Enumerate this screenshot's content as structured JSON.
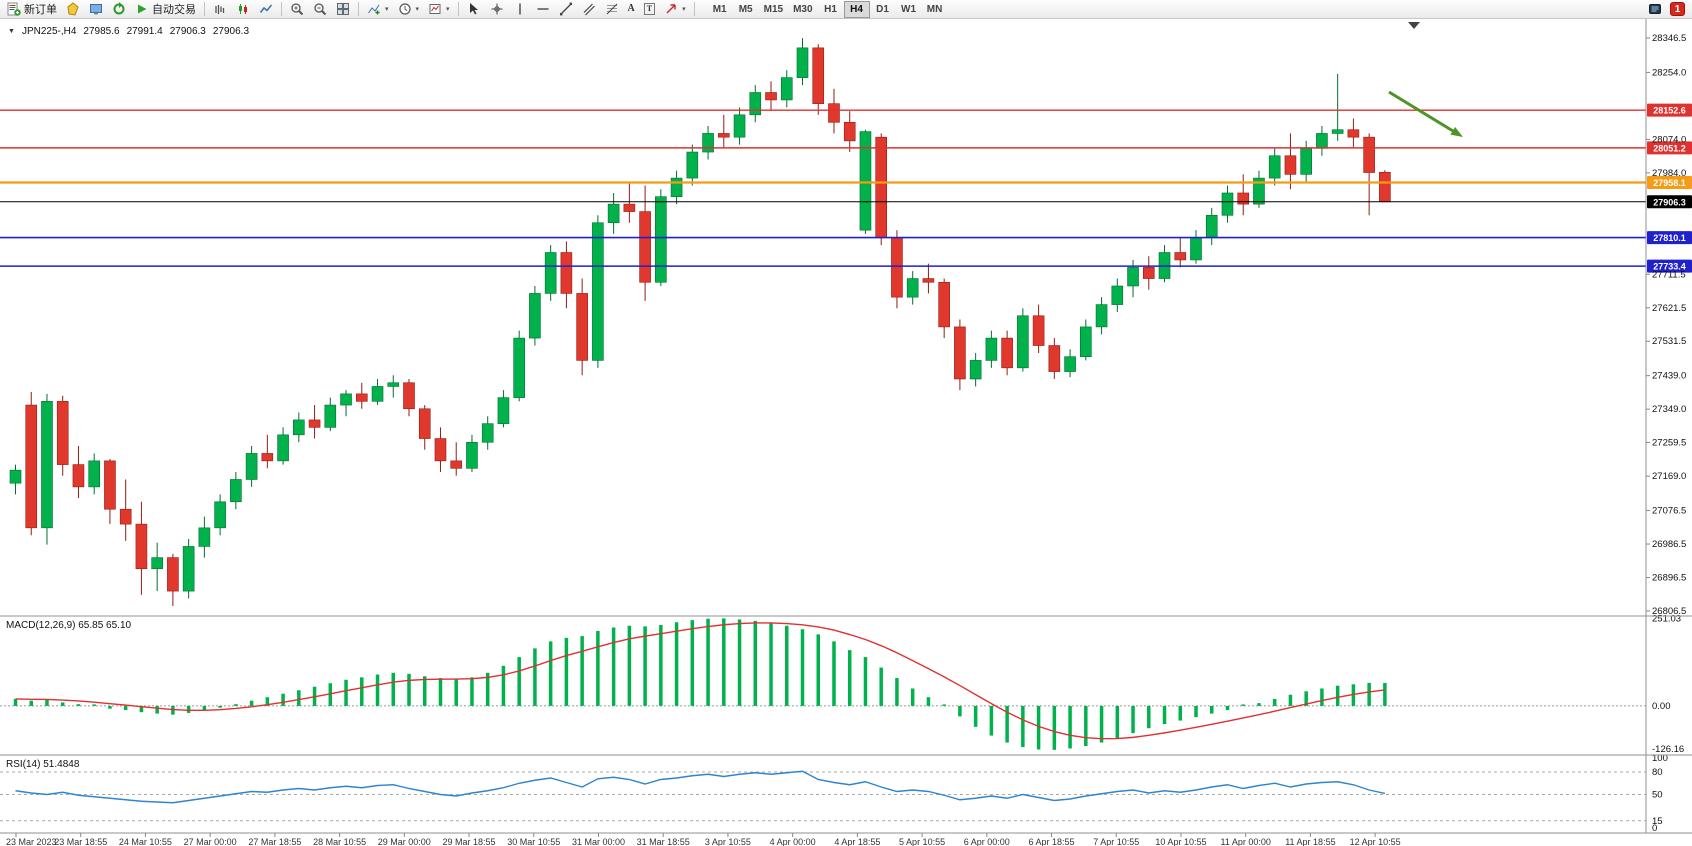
{
  "toolbar": {
    "new_order_label": "新订单",
    "autotrading_label": "自动交易",
    "timeframes": [
      "M1",
      "M5",
      "M15",
      "M30",
      "H1",
      "H4",
      "D1",
      "W1",
      "MN"
    ],
    "active_timeframe": "H4",
    "notification_count": "1"
  },
  "icons": {
    "chevron_down": "▾",
    "one_click": "▼",
    "text_tool": "A",
    "label_tool": "T"
  },
  "chart": {
    "symbol_period_label": "JPN225-,H4",
    "ohlc": {
      "open": "27985.6",
      "high": "27991.4",
      "low": "27906.3",
      "close": "27906.3"
    },
    "candle_up_color": "#00b14c",
    "candle_up_border": "#00702f",
    "candle_down_color": "#e0382c",
    "candle_down_border": "#911d14",
    "axis_labels": [
      "28346.5",
      "28254.0",
      "28074.0",
      "27984.0",
      "27711.5",
      "27621.5",
      "27531.5",
      "27439.0",
      "27349.0",
      "27259.5",
      "27169.0",
      "27076.5",
      "26986.5",
      "26896.5",
      "26806.5"
    ],
    "levels": [
      {
        "price": 28152.6,
        "label": "28152.6",
        "color": "#e03131",
        "width": 1.4
      },
      {
        "price": 28051.2,
        "label": "28051.2",
        "color": "#e03131",
        "width": 1.4
      },
      {
        "price": 27958.1,
        "label": "27958.1",
        "color": "#f59b14",
        "width": 2.2
      },
      {
        "price": 27810.1,
        "label": "27810.1",
        "color": "#2020cc",
        "width": 1.6
      },
      {
        "price": 27733.4,
        "label": "27733.4",
        "color": "#2020cc",
        "width": 1.6
      }
    ],
    "current_price": {
      "price": 27906.3,
      "label": "27906.3",
      "color": "#000000"
    },
    "annotation_arrow_color": "#4e9427"
  },
  "macd": {
    "label": "MACD(12,26,9) 65.85 65.10",
    "axis": [
      "251.03",
      "0.00",
      "-126.16"
    ],
    "histogram_color": "#00b14c",
    "signal_color": "#e03131"
  },
  "rsi": {
    "label": "RSI(14) 51.4848",
    "axis": [
      "100",
      "80",
      "50",
      "15",
      "0"
    ],
    "line_color": "#2f84d0"
  },
  "chart_data": {
    "type": "candlestick",
    "symbol": "JPN225-",
    "timeframe": "H4",
    "ylim": [
      26806.5,
      28346.5
    ],
    "time_labels": [
      "23 Mar 2023",
      "23 Mar 18:55",
      "24 Mar 10:55",
      "27 Mar 00:00",
      "27 Mar 18:55",
      "28 Mar 10:55",
      "29 Mar 00:00",
      "29 Mar 18:55",
      "30 Mar 10:55",
      "31 Mar 00:00",
      "31 Mar 18:55",
      "3 Apr 10:55",
      "4 Apr 00:00",
      "4 Apr 18:55",
      "5 Apr 10:55",
      "6 Apr 00:00",
      "6 Apr 18:55",
      "7 Apr 10:55",
      "10 Apr 10:55",
      "11 Apr 00:00",
      "11 Apr 18:55",
      "12 Apr 10:55"
    ],
    "candles": [
      [
        27150,
        27200,
        27120,
        27185
      ],
      [
        27360,
        27395,
        27010,
        27030
      ],
      [
        27030,
        27390,
        26985,
        27370
      ],
      [
        27370,
        27385,
        27170,
        27200
      ],
      [
        27200,
        27250,
        27110,
        27140
      ],
      [
        27140,
        27230,
        27120,
        27210
      ],
      [
        27210,
        27215,
        27040,
        27080
      ],
      [
        27080,
        27160,
        26995,
        27040
      ],
      [
        27040,
        27100,
        26850,
        26920
      ],
      [
        26920,
        26990,
        26860,
        26950
      ],
      [
        26950,
        26960,
        26820,
        26860
      ],
      [
        26860,
        27000,
        26840,
        26980
      ],
      [
        26980,
        27060,
        26950,
        27030
      ],
      [
        27030,
        27120,
        27010,
        27100
      ],
      [
        27100,
        27180,
        27080,
        27160
      ],
      [
        27160,
        27250,
        27140,
        27230
      ],
      [
        27230,
        27280,
        27190,
        27210
      ],
      [
        27210,
        27300,
        27200,
        27280
      ],
      [
        27280,
        27340,
        27260,
        27320
      ],
      [
        27320,
        27360,
        27270,
        27300
      ],
      [
        27300,
        27380,
        27290,
        27360
      ],
      [
        27360,
        27400,
        27330,
        27390
      ],
      [
        27390,
        27420,
        27350,
        27370
      ],
      [
        27370,
        27430,
        27360,
        27410
      ],
      [
        27410,
        27440,
        27380,
        27420
      ],
      [
        27420,
        27430,
        27330,
        27350
      ],
      [
        27350,
        27360,
        27240,
        27270
      ],
      [
        27270,
        27300,
        27180,
        27210
      ],
      [
        27210,
        27260,
        27170,
        27190
      ],
      [
        27190,
        27280,
        27180,
        27260
      ],
      [
        27260,
        27330,
        27240,
        27310
      ],
      [
        27310,
        27400,
        27300,
        27380
      ],
      [
        27380,
        27560,
        27370,
        27540
      ],
      [
        27540,
        27680,
        27520,
        27660
      ],
      [
        27660,
        27790,
        27640,
        27770
      ],
      [
        27770,
        27800,
        27620,
        27660
      ],
      [
        27660,
        27700,
        27440,
        27480
      ],
      [
        27480,
        27870,
        27460,
        27850
      ],
      [
        27850,
        27930,
        27820,
        27900
      ],
      [
        27900,
        27960,
        27850,
        27880
      ],
      [
        27880,
        27950,
        27640,
        27690
      ],
      [
        27690,
        27940,
        27680,
        27920
      ],
      [
        27920,
        27990,
        27900,
        27970
      ],
      [
        27970,
        28060,
        27950,
        28040
      ],
      [
        28040,
        28110,
        28020,
        28090
      ],
      [
        28090,
        28140,
        28050,
        28080
      ],
      [
        28080,
        28160,
        28060,
        28140
      ],
      [
        28140,
        28220,
        28120,
        28200
      ],
      [
        28200,
        28230,
        28150,
        28180
      ],
      [
        28180,
        28260,
        28160,
        28240
      ],
      [
        28240,
        28346,
        28220,
        28320
      ],
      [
        28320,
        28330,
        28140,
        28170
      ],
      [
        28170,
        28210,
        28090,
        28120
      ],
      [
        28120,
        28150,
        28040,
        28070
      ],
      [
        27830,
        28100,
        27820,
        28095
      ],
      [
        28080,
        28090,
        27790,
        27810
      ],
      [
        27810,
        27830,
        27620,
        27650
      ],
      [
        27650,
        27720,
        27630,
        27700
      ],
      [
        27700,
        27740,
        27660,
        27690
      ],
      [
        27690,
        27700,
        27540,
        27570
      ],
      [
        27570,
        27590,
        27400,
        27430
      ],
      [
        27430,
        27500,
        27410,
        27480
      ],
      [
        27480,
        27560,
        27460,
        27540
      ],
      [
        27540,
        27560,
        27440,
        27460
      ],
      [
        27460,
        27620,
        27450,
        27600
      ],
      [
        27600,
        27630,
        27500,
        27520
      ],
      [
        27520,
        27540,
        27430,
        27450
      ],
      [
        27450,
        27510,
        27435,
        27490
      ],
      [
        27490,
        27590,
        27480,
        27570
      ],
      [
        27570,
        27650,
        27550,
        27630
      ],
      [
        27630,
        27700,
        27610,
        27680
      ],
      [
        27680,
        27750,
        27650,
        27730
      ],
      [
        27730,
        27760,
        27670,
        27700
      ],
      [
        27700,
        27790,
        27690,
        27770
      ],
      [
        27770,
        27810,
        27730,
        27750
      ],
      [
        27750,
        27830,
        27740,
        27810
      ],
      [
        27810,
        27890,
        27790,
        27870
      ],
      [
        27870,
        27950,
        27850,
        27930
      ],
      [
        27930,
        27980,
        27870,
        27900
      ],
      [
        27900,
        27990,
        27890,
        27970
      ],
      [
        27970,
        28050,
        27950,
        28030
      ],
      [
        28030,
        28090,
        27940,
        27980
      ],
      [
        27980,
        28070,
        27960,
        28050
      ],
      [
        28050,
        28110,
        28030,
        28090
      ],
      [
        28090,
        28250,
        28070,
        28100
      ],
      [
        28100,
        28130,
        28050,
        28080
      ],
      [
        28080,
        28090,
        27870,
        27985
      ],
      [
        27985.6,
        27991.4,
        27906.3,
        27906.3
      ]
    ],
    "macd": {
      "histogram": [
        20,
        15,
        18,
        10,
        5,
        -2,
        -8,
        -12,
        -18,
        -22,
        -25,
        -20,
        -12,
        -5,
        5,
        15,
        25,
        35,
        45,
        55,
        65,
        75,
        82,
        90,
        95,
        92,
        85,
        80,
        78,
        82,
        95,
        115,
        140,
        165,
        185,
        195,
        200,
        215,
        225,
        230,
        228,
        232,
        240,
        246,
        250,
        251,
        248,
        244,
        238,
        230,
        220,
        205,
        185,
        160,
        140,
        110,
        80,
        50,
        25,
        0,
        -30,
        -60,
        -85,
        -105,
        -118,
        -125,
        -126,
        -122,
        -115,
        -105,
        -92,
        -78,
        -64,
        -52,
        -42,
        -32,
        -22,
        -12,
        -2,
        8,
        20,
        32,
        42,
        50,
        58,
        62,
        66,
        65.85
      ],
      "current": [
        65.85,
        65.1
      ],
      "ylim": [
        -126.16,
        251.03
      ]
    },
    "rsi": {
      "values": [
        55,
        52,
        50,
        53,
        49,
        47,
        45,
        43,
        41,
        40,
        39,
        42,
        45,
        48,
        51,
        54,
        53,
        56,
        58,
        56,
        59,
        61,
        59,
        62,
        63,
        58,
        54,
        50,
        48,
        52,
        55,
        59,
        65,
        69,
        72,
        66,
        60,
        71,
        73,
        70,
        64,
        70,
        72,
        75,
        77,
        74,
        77,
        79,
        77,
        79,
        81,
        70,
        66,
        63,
        67,
        60,
        54,
        56,
        54,
        49,
        43,
        45,
        48,
        45,
        50,
        46,
        42,
        44,
        48,
        51,
        54,
        56,
        52,
        55,
        53,
        56,
        60,
        63,
        58,
        62,
        65,
        60,
        64,
        66,
        67,
        63,
        56,
        51.48
      ],
      "current": 51.4848,
      "levels": [
        80,
        50,
        15
      ],
      "ylim": [
        0,
        100
      ]
    }
  }
}
